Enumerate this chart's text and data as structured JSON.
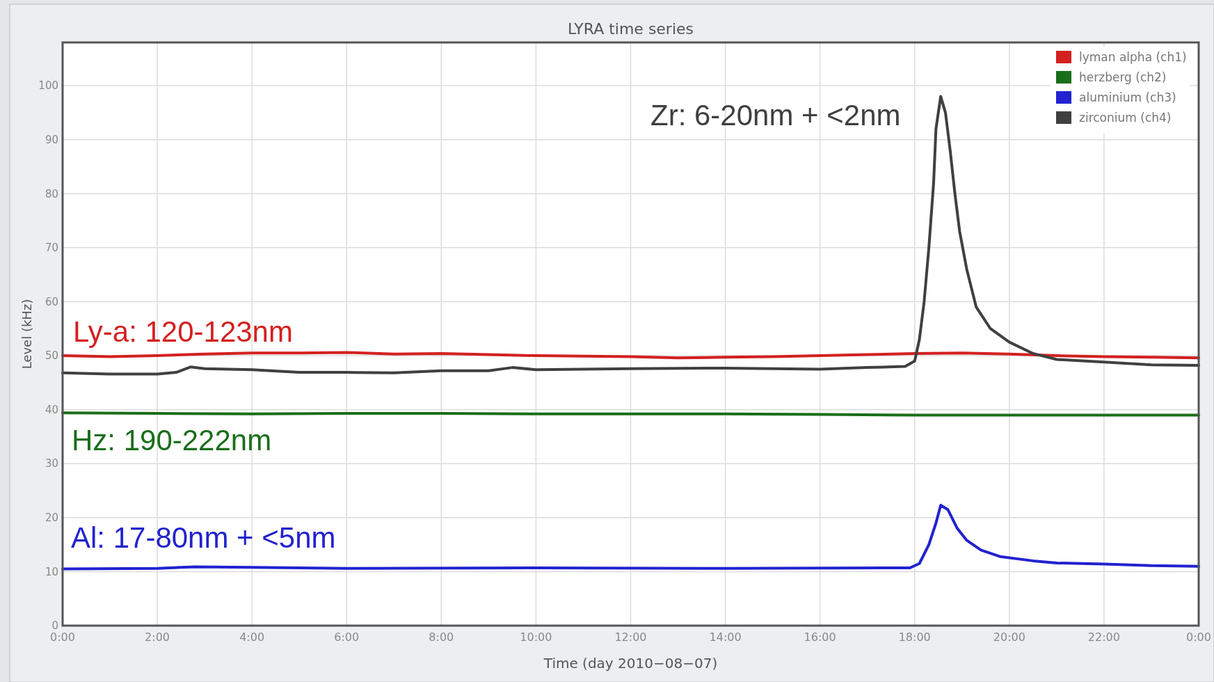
{
  "chart_data": {
    "type": "line",
    "title": "LYRA time series",
    "xlabel": "Time (day 2010−08−07)",
    "ylabel": "Level (kHz)",
    "xlim": [
      0,
      24
    ],
    "ylim": [
      0,
      108
    ],
    "xticks": [
      {
        "value": 0,
        "label": "0:00"
      },
      {
        "value": 2,
        "label": "2:00"
      },
      {
        "value": 4,
        "label": "4:00"
      },
      {
        "value": 6,
        "label": "6:00"
      },
      {
        "value": 8,
        "label": "8:00"
      },
      {
        "value": 10,
        "label": "10:00"
      },
      {
        "value": 12,
        "label": "12:00"
      },
      {
        "value": 14,
        "label": "14:00"
      },
      {
        "value": 16,
        "label": "16:00"
      },
      {
        "value": 18,
        "label": "18:00"
      },
      {
        "value": 20,
        "label": "20:00"
      },
      {
        "value": 22,
        "label": "22:00"
      },
      {
        "value": 24,
        "label": "0:00"
      }
    ],
    "yticks": [
      0,
      10,
      20,
      30,
      40,
      50,
      60,
      70,
      80,
      90,
      100
    ],
    "grid": true,
    "legend": "top right",
    "marker": "none",
    "line_style": "solid",
    "series": [
      {
        "name": "lyman alpha (ch1)",
        "color": "#d42020",
        "x": [
          0,
          1,
          2,
          3,
          4,
          5,
          6,
          7,
          8,
          9,
          10,
          11,
          12,
          13,
          14,
          15,
          16,
          17,
          18,
          19,
          20,
          21,
          22,
          23,
          24
        ],
        "values": [
          50,
          49.8,
          50,
          50.3,
          50.5,
          50.5,
          50.6,
          50.3,
          50.4,
          50.2,
          50,
          49.9,
          49.8,
          49.6,
          49.7,
          49.8,
          50,
          50.2,
          50.4,
          50.5,
          50.3,
          50,
          49.8,
          49.7,
          49.6
        ]
      },
      {
        "name": "herzberg (ch2)",
        "color": "#1a6e1a",
        "x": [
          0,
          2,
          4,
          6,
          8,
          10,
          12,
          14,
          16,
          18,
          20,
          22,
          24
        ],
        "values": [
          39.4,
          39.3,
          39.2,
          39.3,
          39.3,
          39.2,
          39.2,
          39.2,
          39.1,
          39,
          39,
          39,
          39
        ]
      },
      {
        "name": "aluminium (ch3)",
        "color": "#2222d0",
        "x": [
          0,
          2,
          2.8,
          4,
          6,
          10,
          14,
          17.9,
          18.1,
          18.3,
          18.45,
          18.55,
          18.7,
          18.9,
          19.1,
          19.4,
          19.8,
          20.5,
          21,
          22,
          23,
          24
        ],
        "values": [
          10.5,
          10.6,
          10.9,
          10.8,
          10.6,
          10.7,
          10.6,
          10.7,
          11.5,
          15,
          19,
          22.3,
          21.5,
          18,
          15.8,
          14,
          12.8,
          12,
          11.6,
          11.4,
          11.1,
          11
        ]
      },
      {
        "name": "zirconium (ch4)",
        "color": "#404040",
        "x": [
          0,
          1,
          2,
          2.4,
          2.7,
          3,
          4,
          5,
          6,
          7,
          8,
          9,
          9.5,
          10,
          12,
          14,
          16,
          17,
          17.8,
          18,
          18.1,
          18.2,
          18.3,
          18.4,
          18.45,
          18.55,
          18.65,
          18.75,
          18.85,
          18.95,
          19.1,
          19.3,
          19.6,
          20,
          20.5,
          21,
          22,
          23,
          24
        ],
        "values": [
          46.8,
          46.6,
          46.6,
          46.9,
          47.9,
          47.6,
          47.4,
          46.9,
          46.9,
          46.8,
          47.2,
          47.2,
          47.8,
          47.4,
          47.6,
          47.7,
          47.5,
          47.8,
          48,
          49,
          53,
          60,
          70,
          82,
          92,
          98,
          95,
          88,
          80,
          73,
          66,
          59,
          55,
          52.5,
          50.4,
          49.3,
          48.8,
          48.3,
          48.2
        ]
      }
    ],
    "annotations": [
      "Ly-a: 120-123nm",
      "Hz: 190-222nm",
      "Al: 17-80nm + <5nm",
      "Zr: 6-20nm + <2nm"
    ]
  }
}
